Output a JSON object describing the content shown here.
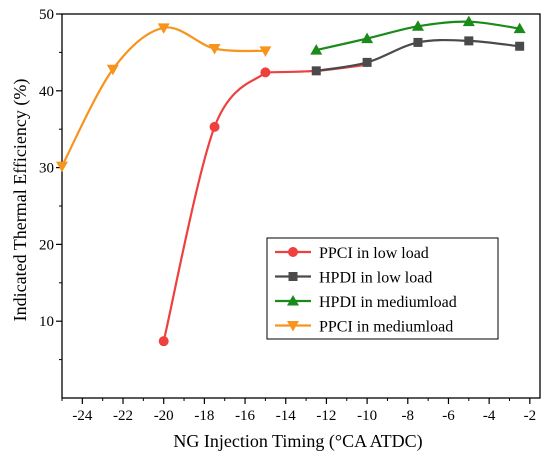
{
  "chart_data": {
    "type": "line",
    "xlabel": "NG Injection Timing (°CA ATDC)",
    "ylabel": "Indicated Thermal Efficiency (%)",
    "xlim": [
      -25,
      -1.5
    ],
    "ylim": [
      0,
      50
    ],
    "x_ticks": [
      -24,
      -22,
      -20,
      -18,
      -16,
      -14,
      -12,
      -10,
      -8,
      -6,
      -4,
      -2
    ],
    "y_ticks": [
      10,
      20,
      30,
      40,
      50
    ],
    "grid": false,
    "legend_position": "lower-right",
    "series": [
      {
        "name": "PPCI in low load",
        "color": "#ef4040",
        "marker": "circle",
        "x": [
          -20,
          -17.5,
          -15
        ],
        "y": [
          7.4,
          35.3,
          42.4
        ]
      },
      {
        "name": "HPDI in low load",
        "color": "#4a4a4a",
        "marker": "square",
        "x": [
          -12.5,
          -10,
          -7.5,
          -5,
          -2.5
        ],
        "y": [
          42.6,
          43.7,
          46.3,
          46.5,
          45.8
        ]
      },
      {
        "name": "HPDI in mediumload",
        "color": "#1a8a1a",
        "marker": "triangle-up",
        "x": [
          -12.5,
          -10,
          -7.5,
          -5,
          -2.5
        ],
        "y": [
          45.3,
          46.8,
          48.4,
          49.0,
          48.1
        ]
      },
      {
        "name": "PPCI in mediumload",
        "color": "#f7941d",
        "marker": "triangle-down",
        "x": [
          -25,
          -22.5,
          -20,
          -17.5,
          -15
        ],
        "y": [
          30.2,
          42.8,
          48.2,
          45.5,
          45.2
        ]
      }
    ],
    "extra_segments": [
      {
        "color": "#ef4040",
        "x": [
          -15,
          -12.5,
          -10
        ],
        "y": [
          42.4,
          42.6,
          43.4
        ]
      }
    ]
  }
}
